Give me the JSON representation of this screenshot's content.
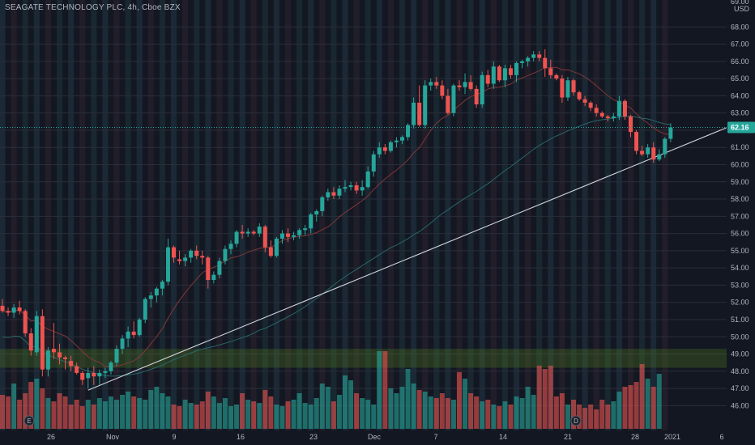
{
  "header": {
    "title": "SEAGATE TECHNOLOGY PLC, 4h, Cboe BZX"
  },
  "axis": {
    "currency": "USD",
    "top_cut_label": "69.00",
    "y_ticks": [
      "46.00",
      "47.00",
      "48.00",
      "49.00",
      "50.00",
      "51.00",
      "52.00",
      "53.00",
      "54.00",
      "55.00",
      "56.00",
      "57.00",
      "58.00",
      "59.00",
      "60.00",
      "61.00",
      "62.00",
      "63.00",
      "64.00",
      "65.00",
      "66.00",
      "67.00",
      "68.00"
    ],
    "x_ticks": [
      "26",
      "Nov",
      "9",
      "16",
      "23",
      "Dec",
      "7",
      "14",
      "21",
      "28",
      "2021",
      "6"
    ]
  },
  "last_price": "62.16",
  "markers": {
    "earnings": "E",
    "dividend": "D"
  },
  "colors": {
    "background": "#131722",
    "up": "#26a69a",
    "down": "#ef5350",
    "ma_fast": "#8b3a3a",
    "ma_slow": "#2a6f6f",
    "trendline": "#d1d4dc",
    "price_tag": "#26a69a",
    "volume_up": "#26a69a",
    "volume_down": "#ef5350",
    "band": "#5b8a1e"
  },
  "chart_data": {
    "type": "candlestick",
    "title": "SEAGATE TECHNOLOGY PLC, 4h, Cboe BZX",
    "ylabel": "USD",
    "ylim": [
      45.5,
      69
    ],
    "grid": true,
    "x_tick_labels": [
      "26",
      "Nov",
      "9",
      "16",
      "23",
      "Dec",
      "7",
      "14",
      "21",
      "28",
      "2021",
      "6"
    ],
    "candles": [
      [
        51.8,
        52.2,
        51.4,
        51.5
      ],
      [
        51.5,
        51.7,
        51.2,
        51.4
      ],
      [
        51.4,
        51.9,
        51.1,
        51.7
      ],
      [
        51.7,
        52.1,
        51.3,
        51.5
      ],
      [
        51.5,
        51.6,
        50.0,
        50.2
      ],
      [
        50.2,
        50.5,
        48.9,
        49.2
      ],
      [
        49.1,
        51.5,
        48.9,
        51.2
      ],
      [
        51.2,
        51.6,
        47.7,
        48.1
      ],
      [
        48.1,
        49.4,
        47.7,
        49.2
      ],
      [
        49.3,
        50.8,
        48.7,
        49.1
      ],
      [
        49.1,
        49.6,
        48.4,
        48.8
      ],
      [
        48.8,
        48.9,
        48.1,
        48.7
      ],
      [
        48.6,
        48.9,
        48.0,
        48.3
      ],
      [
        48.3,
        48.5,
        47.8,
        47.9
      ],
      [
        47.9,
        48.0,
        47.2,
        47.5
      ],
      [
        47.6,
        48.2,
        47.0,
        47.9
      ],
      [
        47.9,
        48.3,
        47.2,
        47.7
      ],
      [
        47.7,
        48.1,
        47.2,
        47.9
      ],
      [
        47.9,
        48.2,
        47.6,
        48.0
      ],
      [
        48.0,
        48.6,
        47.8,
        48.5
      ],
      [
        48.5,
        49.5,
        48.3,
        49.3
      ],
      [
        49.3,
        50.1,
        49.0,
        49.9
      ],
      [
        49.9,
        50.6,
        49.4,
        50.3
      ],
      [
        50.3,
        50.9,
        49.9,
        50.1
      ],
      [
        50.1,
        51.1,
        50.0,
        51.0
      ],
      [
        51.0,
        52.3,
        50.8,
        52.2
      ],
      [
        52.2,
        52.6,
        51.7,
        52.4
      ],
      [
        52.4,
        52.9,
        52.0,
        52.8
      ],
      [
        52.8,
        53.3,
        52.4,
        53.2
      ],
      [
        53.2,
        55.7,
        53.0,
        55.2
      ],
      [
        55.2,
        55.3,
        54.3,
        54.6
      ],
      [
        54.5,
        55.0,
        54.2,
        54.4
      ],
      [
        54.4,
        54.8,
        54.1,
        54.6
      ],
      [
        54.6,
        55.1,
        54.3,
        55.0
      ],
      [
        55.0,
        55.3,
        54.5,
        54.7
      ],
      [
        54.7,
        55.0,
        54.2,
        54.6
      ],
      [
        54.6,
        54.7,
        52.8,
        53.3
      ],
      [
        53.3,
        53.8,
        53.1,
        53.6
      ],
      [
        53.6,
        54.6,
        53.4,
        54.4
      ],
      [
        54.4,
        55.3,
        54.2,
        55.1
      ],
      [
        55.1,
        55.6,
        54.8,
        55.4
      ],
      [
        55.4,
        56.2,
        55.2,
        56.1
      ],
      [
        56.1,
        56.5,
        55.7,
        56.0
      ],
      [
        56.0,
        56.3,
        55.8,
        56.1
      ],
      [
        56.1,
        56.2,
        55.9,
        56.0
      ],
      [
        56.0,
        56.6,
        55.8,
        56.4
      ],
      [
        56.4,
        56.5,
        54.9,
        55.2
      ],
      [
        55.2,
        55.6,
        54.6,
        54.7
      ],
      [
        54.7,
        55.8,
        54.6,
        55.7
      ],
      [
        55.7,
        56.2,
        55.4,
        56.0
      ],
      [
        56.0,
        56.3,
        55.5,
        55.8
      ],
      [
        55.8,
        56.1,
        55.6,
        55.9
      ],
      [
        55.9,
        56.3,
        55.7,
        56.2
      ],
      [
        56.2,
        56.5,
        55.9,
        56.3
      ],
      [
        56.3,
        57.2,
        56.0,
        57.1
      ],
      [
        57.1,
        57.4,
        56.7,
        57.3
      ],
      [
        57.3,
        58.2,
        57.0,
        58.1
      ],
      [
        58.1,
        58.6,
        57.9,
        58.4
      ],
      [
        58.4,
        58.7,
        58.0,
        58.2
      ],
      [
        58.2,
        58.8,
        58.0,
        58.6
      ],
      [
        58.6,
        59.1,
        58.4,
        58.7
      ],
      [
        58.7,
        59.0,
        58.5,
        58.8
      ],
      [
        58.8,
        59.0,
        58.3,
        58.5
      ],
      [
        58.5,
        59.1,
        58.2,
        58.7
      ],
      [
        58.7,
        59.9,
        58.6,
        59.6
      ],
      [
        59.6,
        60.8,
        59.3,
        60.6
      ],
      [
        60.6,
        61.3,
        60.4,
        61.0
      ],
      [
        61.0,
        61.2,
        60.6,
        60.8
      ],
      [
        60.8,
        61.4,
        60.7,
        61.3
      ],
      [
        61.3,
        61.6,
        61.0,
        61.4
      ],
      [
        61.4,
        61.7,
        61.2,
        61.6
      ],
      [
        61.6,
        62.4,
        61.4,
        62.3
      ],
      [
        62.3,
        63.9,
        62.1,
        63.6
      ],
      [
        63.6,
        64.6,
        62.2,
        62.3
      ],
      [
        62.3,
        64.9,
        62.1,
        64.6
      ],
      [
        64.6,
        65.0,
        64.3,
        64.8
      ],
      [
        64.8,
        65.1,
        64.4,
        64.6
      ],
      [
        64.6,
        64.9,
        63.8,
        64.0
      ],
      [
        64.0,
        64.4,
        62.9,
        63.0
      ],
      [
        63.0,
        64.7,
        62.8,
        64.6
      ],
      [
        64.6,
        64.9,
        64.3,
        64.5
      ],
      [
        64.5,
        65.3,
        64.1,
        64.8
      ],
      [
        64.8,
        65.2,
        64.3,
        64.4
      ],
      [
        64.4,
        64.6,
        63.3,
        63.5
      ],
      [
        63.5,
        65.4,
        63.3,
        65.2
      ],
      [
        65.2,
        65.5,
        64.5,
        64.7
      ],
      [
        64.7,
        66.0,
        64.4,
        65.7
      ],
      [
        65.7,
        65.8,
        64.8,
        64.9
      ],
      [
        64.9,
        65.8,
        64.5,
        65.6
      ],
      [
        65.6,
        65.8,
        65.0,
        65.2
      ],
      [
        65.2,
        66.0,
        64.8,
        65.9
      ],
      [
        65.9,
        66.1,
        65.6,
        66.0
      ],
      [
        66.0,
        66.3,
        65.7,
        66.2
      ],
      [
        66.2,
        66.6,
        66.0,
        66.4
      ],
      [
        66.4,
        66.6,
        66.0,
        66.2
      ],
      [
        66.2,
        66.7,
        65.1,
        65.6
      ],
      [
        65.6,
        66.1,
        65.0,
        65.2
      ],
      [
        65.2,
        65.3,
        64.9,
        65.0
      ],
      [
        65.0,
        65.2,
        63.6,
        63.9
      ],
      [
        63.9,
        65.1,
        63.7,
        64.9
      ],
      [
        64.9,
        65.0,
        64.0,
        64.2
      ],
      [
        64.2,
        64.3,
        63.7,
        63.8
      ],
      [
        63.8,
        64.0,
        63.4,
        63.6
      ],
      [
        63.6,
        63.7,
        63.1,
        63.3
      ],
      [
        63.3,
        63.5,
        62.8,
        63.0
      ],
      [
        63.0,
        63.1,
        62.7,
        62.8
      ],
      [
        62.8,
        62.9,
        62.5,
        62.7
      ],
      [
        62.7,
        63.0,
        62.5,
        62.8
      ],
      [
        62.8,
        64.0,
        62.6,
        63.7
      ],
      [
        63.7,
        63.8,
        62.6,
        62.8
      ],
      [
        62.8,
        62.9,
        61.6,
        61.9
      ],
      [
        61.9,
        62.0,
        60.6,
        60.8
      ],
      [
        60.8,
        61.1,
        60.5,
        60.6
      ],
      [
        60.6,
        61.2,
        60.4,
        61.0
      ],
      [
        61.0,
        61.3,
        60.1,
        60.3
      ],
      [
        60.3,
        60.9,
        60.2,
        60.6
      ],
      [
        60.6,
        61.6,
        60.4,
        61.5
      ],
      [
        61.5,
        62.4,
        61.3,
        62.16
      ]
    ],
    "volume_relative": [
      0.42,
      0.4,
      0.56,
      0.36,
      0.44,
      0.58,
      0.62,
      0.5,
      0.38,
      0.34,
      0.44,
      0.4,
      0.3,
      0.36,
      0.28,
      0.36,
      0.3,
      0.38,
      0.34,
      0.4,
      0.36,
      0.42,
      0.46,
      0.4,
      0.38,
      0.36,
      0.48,
      0.52,
      0.44,
      0.4,
      0.3,
      0.28,
      0.36,
      0.32,
      0.3,
      0.34,
      0.46,
      0.4,
      0.32,
      0.38,
      0.28,
      0.3,
      0.44,
      0.36,
      0.34,
      0.32,
      0.48,
      0.4,
      0.3,
      0.28,
      0.34,
      0.36,
      0.44,
      0.32,
      0.3,
      0.38,
      0.56,
      0.52,
      0.34,
      0.42,
      0.66,
      0.6,
      0.44,
      0.38,
      0.36,
      0.3,
      0.96,
      0.96,
      0.5,
      0.44,
      0.52,
      0.74,
      0.56,
      0.48,
      0.46,
      0.4,
      0.38,
      0.44,
      0.38,
      0.36,
      0.7,
      0.62,
      0.44,
      0.4,
      0.34,
      0.36,
      0.3,
      0.28,
      0.34,
      0.3,
      0.4,
      0.38,
      0.52,
      0.42,
      0.78,
      0.74,
      0.78,
      0.4,
      0.44,
      0.3,
      0.36,
      0.3,
      0.26,
      0.3,
      0.24,
      0.36,
      0.3,
      0.34,
      0.46,
      0.52,
      0.54,
      0.58,
      0.8,
      0.62,
      0.52,
      0.68
    ],
    "moving_averages": [
      {
        "values_fast": "derived"
      }
    ]
  }
}
